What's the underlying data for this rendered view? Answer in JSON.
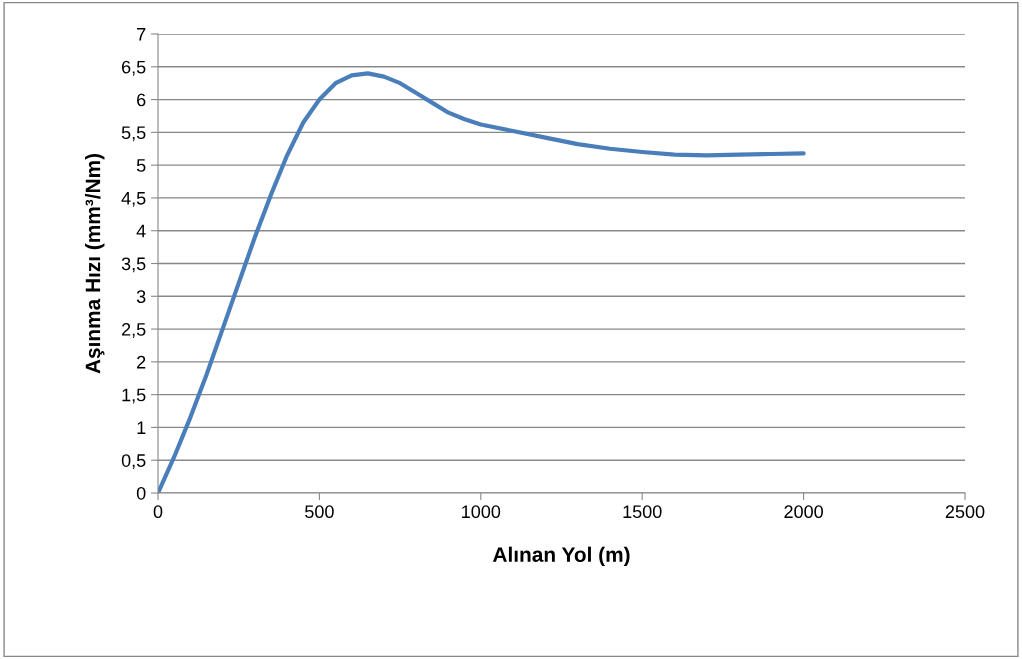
{
  "chart_data": {
    "type": "line",
    "xlabel": "Alınan Yol (m)",
    "ylabel": "Aşınma Hızı (mm³/Nm)",
    "x": [
      0,
      50,
      100,
      150,
      200,
      250,
      300,
      350,
      400,
      450,
      500,
      550,
      600,
      650,
      700,
      750,
      800,
      850,
      900,
      950,
      1000,
      1100,
      1200,
      1300,
      1400,
      1500,
      1600,
      1700,
      1800,
      1900,
      2000
    ],
    "series": [
      {
        "color": "#4a7ebb",
        "values": [
          0,
          0.55,
          1.15,
          1.8,
          2.5,
          3.2,
          3.9,
          4.55,
          5.15,
          5.65,
          6.0,
          6.25,
          6.37,
          6.4,
          6.35,
          6.25,
          6.1,
          5.95,
          5.8,
          5.7,
          5.62,
          5.52,
          5.42,
          5.32,
          5.25,
          5.2,
          5.16,
          5.15,
          5.16,
          5.17,
          5.18
        ]
      }
    ],
    "xlim": [
      0,
      2500
    ],
    "xticks": [
      0,
      500,
      1000,
      1500,
      2000,
      2500
    ],
    "ylim": [
      0,
      7
    ],
    "yticks": [
      0,
      {
        "value": 0.5,
        "label": "0,5"
      },
      1,
      {
        "value": 1.5,
        "label": "1,5"
      },
      2,
      {
        "value": 2.5,
        "label": "2,5"
      },
      3,
      {
        "value": 3.5,
        "label": "3,5"
      },
      4,
      {
        "value": 4.5,
        "label": "4,5"
      },
      5,
      {
        "value": 5.5,
        "label": "5,5"
      },
      6,
      {
        "value": 6.5,
        "label": "6,5"
      },
      7
    ],
    "grid": "y",
    "marker": "none",
    "line_style": "solid"
  }
}
